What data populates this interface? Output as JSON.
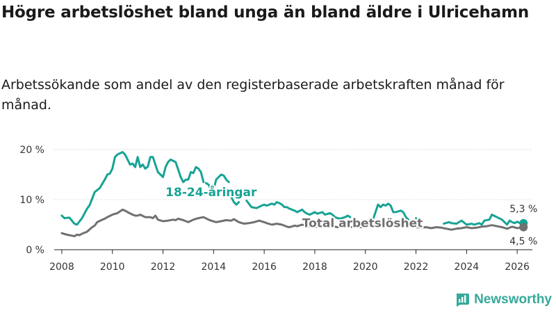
{
  "title": "Högre arbetslöshet bland unga än bland äldre i Ulricehamn",
  "subtitle": "Arbetssökande som andel av den registerbaserade arbetskraften månad för månad.",
  "brand": "Newsworthy",
  "chart_data": {
    "type": "line",
    "ylim": [
      0,
      20
    ],
    "xlim": [
      2007.7,
      2026.6
    ],
    "yticks": [
      {
        "v": 0,
        "label": "0 %"
      },
      {
        "v": 10,
        "label": "10 %"
      },
      {
        "v": 20,
        "label": "20 %"
      }
    ],
    "xticks": [
      {
        "v": 2008,
        "label": "2008"
      },
      {
        "v": 2010,
        "label": "2010"
      },
      {
        "v": 2012,
        "label": "2012"
      },
      {
        "v": 2014,
        "label": "2014"
      },
      {
        "v": 2016,
        "label": "2016"
      },
      {
        "v": 2018,
        "label": "2018"
      },
      {
        "v": 2020,
        "label": "2020"
      },
      {
        "v": 2022,
        "label": "2022"
      },
      {
        "v": 2024,
        "label": "2024"
      },
      {
        "v": 2026,
        "label": "2026"
      }
    ],
    "series": [
      {
        "name": "18-24-åringar",
        "color": "#16a394",
        "end_label": "5,3 %",
        "segments": [
          [
            [
              2008.0,
              6.8
            ],
            [
              2008.1,
              6.3
            ],
            [
              2008.3,
              6.4
            ],
            [
              2008.5,
              5.2
            ],
            [
              2008.6,
              5.0
            ],
            [
              2008.8,
              6.3
            ],
            [
              2009.0,
              8.2
            ],
            [
              2009.1,
              8.9
            ],
            [
              2009.3,
              11.5
            ],
            [
              2009.5,
              12.3
            ],
            [
              2009.7,
              14.0
            ],
            [
              2009.8,
              15.0
            ],
            [
              2009.9,
              15.2
            ],
            [
              2010.0,
              16.2
            ],
            [
              2010.1,
              18.5
            ],
            [
              2010.2,
              19.0
            ],
            [
              2010.4,
              19.5
            ],
            [
              2010.5,
              19.0
            ],
            [
              2010.6,
              18.0
            ],
            [
              2010.7,
              17.0
            ],
            [
              2010.8,
              17.2
            ],
            [
              2010.9,
              16.5
            ],
            [
              2011.0,
              18.5
            ],
            [
              2011.1,
              16.5
            ],
            [
              2011.2,
              17.0
            ],
            [
              2011.3,
              16.2
            ],
            [
              2011.4,
              16.6
            ],
            [
              2011.5,
              18.5
            ],
            [
              2011.6,
              18.5
            ],
            [
              2011.7,
              17.0
            ],
            [
              2011.8,
              15.5
            ],
            [
              2011.9,
              15.0
            ],
            [
              2012.0,
              14.5
            ],
            [
              2012.1,
              16.5
            ],
            [
              2012.2,
              17.5
            ],
            [
              2012.3,
              18.0
            ],
            [
              2012.5,
              17.5
            ],
            [
              2012.6,
              16.0
            ],
            [
              2012.7,
              14.5
            ],
            [
              2012.8,
              13.5
            ],
            [
              2012.9,
              14.0
            ],
            [
              2013.0,
              14.0
            ],
            [
              2013.1,
              15.5
            ],
            [
              2013.2,
              15.3
            ],
            [
              2013.3,
              16.5
            ],
            [
              2013.4,
              16.2
            ],
            [
              2013.5,
              15.5
            ],
            [
              2013.6,
              13.5
            ]
          ],
          [
            [
              2013.7,
              13.3
            ],
            [
              2013.8,
              13.0
            ],
            [
              2013.9,
              12.0
            ],
            [
              2014.0,
              12.0
            ],
            [
              2014.1,
              14.0
            ],
            [
              2014.2,
              14.5
            ],
            [
              2014.3,
              15.0
            ],
            [
              2014.4,
              14.8
            ],
            [
              2014.5,
              14.0
            ],
            [
              2014.6,
              13.5
            ]
          ],
          [
            [
              2014.7,
              10.5
            ],
            [
              2014.8,
              9.5
            ],
            [
              2014.9,
              9.0
            ],
            [
              2015.0,
              9.5
            ]
          ],
          [
            [
              2015.3,
              9.8
            ],
            [
              2015.5,
              8.5
            ],
            [
              2015.6,
              8.4
            ],
            [
              2015.7,
              8.3
            ],
            [
              2015.9,
              8.8
            ],
            [
              2016.0,
              9.0
            ],
            [
              2016.1,
              8.8
            ],
            [
              2016.3,
              9.2
            ],
            [
              2016.4,
              9.0
            ],
            [
              2016.5,
              9.5
            ],
            [
              2016.6,
              9.3
            ],
            [
              2016.7,
              9.0
            ],
            [
              2016.8,
              8.5
            ],
            [
              2016.9,
              8.5
            ],
            [
              2017.0,
              8.2
            ],
            [
              2017.2,
              7.8
            ],
            [
              2017.3,
              7.5
            ],
            [
              2017.5,
              8.0
            ],
            [
              2017.6,
              7.5
            ],
            [
              2017.7,
              7.2
            ],
            [
              2017.8,
              7.0
            ],
            [
              2018.0,
              7.5
            ],
            [
              2018.1,
              7.2
            ],
            [
              2018.3,
              7.5
            ],
            [
              2018.4,
              7.0
            ],
            [
              2018.6,
              7.3
            ],
            [
              2018.7,
              7.0
            ],
            [
              2018.8,
              6.5
            ],
            [
              2018.9,
              6.3
            ],
            [
              2019.0,
              6.2
            ],
            [
              2019.2,
              6.5
            ],
            [
              2019.3,
              6.8
            ],
            [
              2019.4,
              6.5
            ]
          ],
          [
            [
              2019.6,
              5.8
            ],
            [
              2019.7,
              5.5
            ],
            [
              2019.8,
              5.3
            ]
          ],
          [
            [
              2020.3,
              6.0
            ],
            [
              2020.4,
              7.5
            ],
            [
              2020.5,
              9.0
            ],
            [
              2020.6,
              8.5
            ],
            [
              2020.7,
              9.0
            ],
            [
              2020.8,
              8.8
            ],
            [
              2020.9,
              9.2
            ],
            [
              2021.0,
              8.8
            ],
            [
              2021.1,
              7.5
            ],
            [
              2021.2,
              7.5
            ],
            [
              2021.4,
              7.8
            ],
            [
              2021.5,
              7.5
            ],
            [
              2021.6,
              6.5
            ],
            [
              2021.7,
              6.0
            ]
          ],
          [
            [
              2022.0,
              6.3
            ],
            [
              2022.1,
              6.0
            ],
            [
              2022.2,
              5.8
            ]
          ],
          [
            [
              2023.1,
              5.2
            ],
            [
              2023.3,
              5.5
            ],
            [
              2023.4,
              5.3
            ],
            [
              2023.6,
              5.2
            ],
            [
              2023.8,
              5.8
            ],
            [
              2024.0,
              5.0
            ],
            [
              2024.2,
              5.2
            ],
            [
              2024.3,
              5.0
            ],
            [
              2024.5,
              5.3
            ],
            [
              2024.6,
              5.0
            ],
            [
              2024.7,
              5.8
            ],
            [
              2024.9,
              6.0
            ],
            [
              2025.0,
              7.0
            ],
            [
              2025.2,
              6.5
            ],
            [
              2025.4,
              6.0
            ],
            [
              2025.5,
              5.5
            ],
            [
              2025.6,
              5.0
            ],
            [
              2025.7,
              5.8
            ],
            [
              2025.8,
              5.5
            ],
            [
              2025.9,
              5.3
            ],
            [
              2026.0,
              5.6
            ],
            [
              2026.1,
              5.3
            ],
            [
              2026.25,
              5.3
            ]
          ]
        ]
      },
      {
        "name": "Total arbetslöshet",
        "color": "#707070",
        "end_label": "4,5 %",
        "segments": [
          [
            [
              2008.0,
              3.3
            ],
            [
              2008.2,
              3.0
            ],
            [
              2008.4,
              2.8
            ],
            [
              2008.5,
              2.7
            ],
            [
              2008.6,
              3.0
            ],
            [
              2008.7,
              2.9
            ],
            [
              2008.8,
              3.2
            ],
            [
              2009.0,
              3.6
            ],
            [
              2009.2,
              4.5
            ],
            [
              2009.3,
              4.8
            ],
            [
              2009.4,
              5.5
            ],
            [
              2009.6,
              6.0
            ],
            [
              2009.7,
              6.2
            ],
            [
              2009.8,
              6.5
            ],
            [
              2010.0,
              7.0
            ],
            [
              2010.2,
              7.3
            ],
            [
              2010.4,
              8.0
            ],
            [
              2010.5,
              7.8
            ],
            [
              2010.6,
              7.5
            ],
            [
              2010.8,
              7.0
            ],
            [
              2010.9,
              6.8
            ],
            [
              2011.0,
              6.8
            ],
            [
              2011.1,
              7.0
            ],
            [
              2011.3,
              6.5
            ],
            [
              2011.5,
              6.5
            ],
            [
              2011.6,
              6.3
            ],
            [
              2011.7,
              6.8
            ],
            [
              2011.8,
              6.0
            ],
            [
              2012.0,
              5.7
            ],
            [
              2012.2,
              5.8
            ],
            [
              2012.4,
              6.0
            ],
            [
              2012.5,
              5.9
            ],
            [
              2012.6,
              6.2
            ],
            [
              2012.8,
              5.9
            ],
            [
              2013.0,
              5.5
            ],
            [
              2013.2,
              6.0
            ],
            [
              2013.4,
              6.3
            ],
            [
              2013.6,
              6.5
            ],
            [
              2013.8,
              6.0
            ],
            [
              2013.9,
              5.8
            ],
            [
              2014.1,
              5.5
            ],
            [
              2014.3,
              5.7
            ],
            [
              2014.5,
              5.9
            ],
            [
              2014.7,
              5.8
            ],
            [
              2014.8,
              6.1
            ],
            [
              2015.0,
              5.5
            ],
            [
              2015.2,
              5.2
            ],
            [
              2015.4,
              5.3
            ],
            [
              2015.6,
              5.5
            ],
            [
              2015.8,
              5.8
            ],
            [
              2016.0,
              5.5
            ],
            [
              2016.1,
              5.3
            ],
            [
              2016.3,
              5.0
            ],
            [
              2016.5,
              5.2
            ],
            [
              2016.7,
              5.0
            ],
            [
              2016.9,
              4.6
            ],
            [
              2017.0,
              4.5
            ],
            [
              2017.2,
              4.8
            ],
            [
              2017.3,
              4.7
            ],
            [
              2017.5,
              5.0
            ],
            [
              2017.7,
              4.7
            ],
            [
              2017.9,
              4.5
            ],
            [
              2018.0,
              4.5
            ],
            [
              2018.2,
              4.8
            ],
            [
              2018.3,
              4.6
            ],
            [
              2018.5,
              4.9
            ],
            [
              2018.7,
              4.7
            ],
            [
              2018.9,
              4.5
            ],
            [
              2019.0,
              4.6
            ],
            [
              2019.2,
              4.6
            ],
            [
              2019.4,
              4.5
            ],
            [
              2019.6,
              4.6
            ],
            [
              2019.8,
              4.5
            ],
            [
              2020.0,
              4.6
            ],
            [
              2020.2,
              4.8
            ],
            [
              2020.4,
              5.0
            ],
            [
              2020.6,
              5.2
            ],
            [
              2020.7,
              5.0
            ],
            [
              2020.8,
              5.3
            ],
            [
              2021.0,
              5.0
            ],
            [
              2021.2,
              4.8
            ],
            [
              2021.4,
              5.0
            ],
            [
              2021.6,
              4.9
            ],
            [
              2021.8,
              4.6
            ],
            [
              2022.0,
              4.5
            ],
            [
              2022.2,
              4.4
            ],
            [
              2022.4,
              4.5
            ],
            [
              2022.6,
              4.3
            ],
            [
              2022.8,
              4.5
            ],
            [
              2023.0,
              4.4
            ],
            [
              2023.2,
              4.2
            ],
            [
              2023.4,
              4.0
            ],
            [
              2023.6,
              4.2
            ],
            [
              2023.8,
              4.3
            ],
            [
              2024.0,
              4.5
            ],
            [
              2024.2,
              4.3
            ],
            [
              2024.4,
              4.4
            ],
            [
              2024.6,
              4.6
            ],
            [
              2024.8,
              4.7
            ],
            [
              2025.0,
              4.9
            ],
            [
              2025.2,
              4.7
            ],
            [
              2025.4,
              4.5
            ],
            [
              2025.6,
              4.2
            ],
            [
              2025.8,
              4.6
            ],
            [
              2026.0,
              4.3
            ],
            [
              2026.25,
              4.5
            ]
          ]
        ]
      }
    ],
    "labels": [
      {
        "text": "18-24-åringar",
        "series": 0,
        "x": 2012.1,
        "y": 10.7
      },
      {
        "text": "Total arbetslöshet",
        "series": 1,
        "x": 2017.5,
        "y": 4.5
      }
    ]
  }
}
